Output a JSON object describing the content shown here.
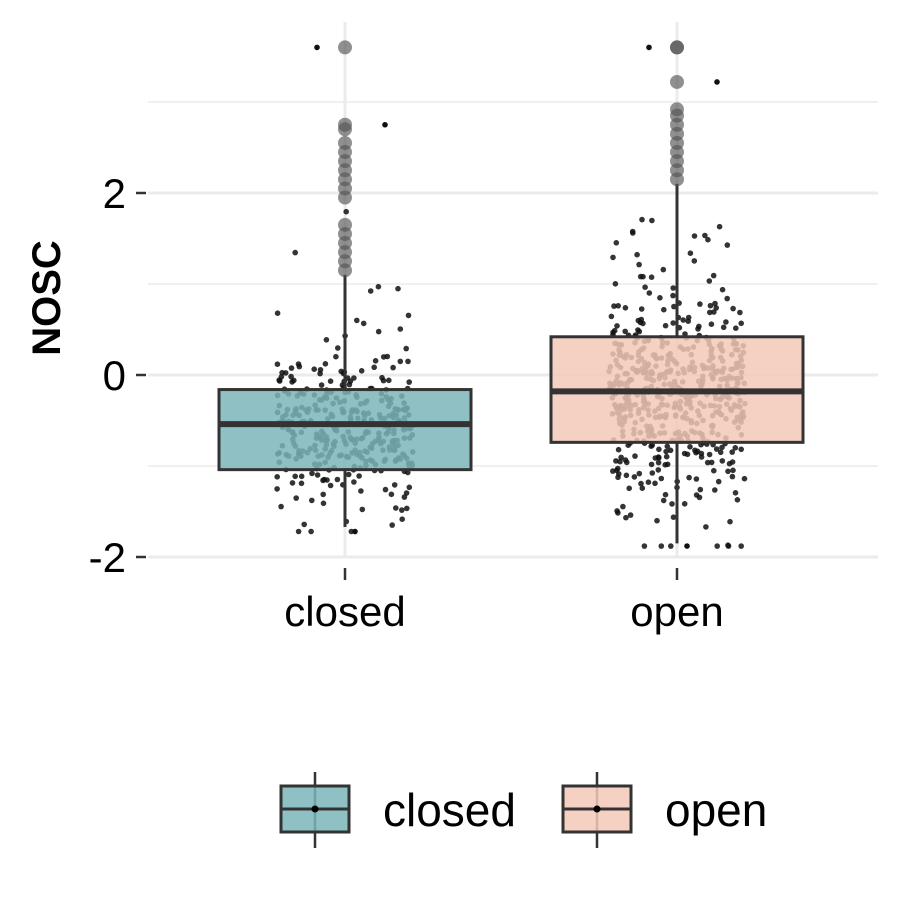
{
  "chart_data": {
    "type": "box",
    "ylabel": "NOSC",
    "xlabel": "",
    "categories": [
      "closed",
      "open"
    ],
    "y_ticks": [
      -2,
      0,
      2
    ],
    "y_tick_labels": [
      "-2",
      "0",
      "2"
    ],
    "ylim": [
      -2.0,
      3.8
    ],
    "grid": true,
    "legend_position": "bottom",
    "legend_entries": [
      "closed",
      "open"
    ],
    "colors": {
      "closed": "#7ab5ba",
      "open": "#f2c9b9",
      "outline": "#333333",
      "points": "#111111",
      "grid": "#ebebeb"
    },
    "boxes": [
      {
        "category": "closed",
        "q1": -1.04,
        "median": -0.54,
        "q3": -0.16,
        "whisker_low": -1.67,
        "whisker_high": 1.1,
        "outliers": [
          1.15,
          1.25,
          1.35,
          1.45,
          1.55,
          1.65,
          1.95,
          2.05,
          2.15,
          2.25,
          2.35,
          2.45,
          2.55,
          2.7,
          2.75,
          3.6
        ],
        "jitter_count": 360,
        "jitter_extremes": [
          -1.72,
          2.75,
          3.6
        ]
      },
      {
        "category": "open",
        "q1": -0.74,
        "median": -0.18,
        "q3": 0.42,
        "whisker_low": -1.85,
        "whisker_high": 2.1,
        "outliers": [
          2.15,
          2.25,
          2.35,
          2.45,
          2.55,
          2.65,
          2.75,
          2.85,
          2.92,
          3.22,
          3.6,
          3.6
        ],
        "jitter_count": 560,
        "jitter_extremes": [
          -1.88,
          3.22,
          3.6
        ]
      }
    ]
  }
}
